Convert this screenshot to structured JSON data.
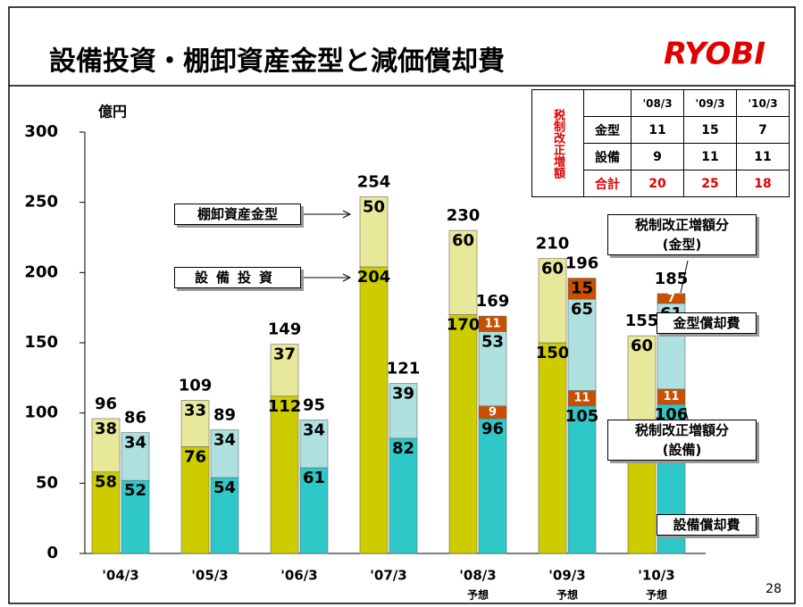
{
  "title": "設備投資・棚卸資産金型と減価償却費",
  "logo": "RYOBI",
  "page_number": "28",
  "chart_data": {
    "type": "stacked-bar",
    "unit_label": "億円",
    "categories": [
      "'04/3",
      "'05/3",
      "'06/3",
      "'07/3",
      "'08/3",
      "'09/3",
      "'10/3"
    ],
    "sublabels": [
      null,
      null,
      null,
      null,
      "予想",
      "予想",
      "予想"
    ],
    "ylim": [
      0,
      300
    ],
    "yticks": [
      0,
      50,
      100,
      150,
      200,
      250,
      300
    ],
    "stacks": [
      {
        "totals": [
          96,
          109,
          149,
          254,
          230,
          210,
          155
        ],
        "series": [
          {
            "name": "設備投資",
            "color": "#cccc00",
            "values": [
              58,
              76,
              112,
              204,
              170,
              150,
              95
            ]
          },
          {
            "name": "棚卸資産金型",
            "color": "#e8e89a",
            "values": [
              38,
              33,
              37,
              50,
              60,
              60,
              60
            ]
          }
        ]
      },
      {
        "totals": [
          86,
          89,
          95,
          121,
          169,
          196,
          185
        ],
        "series": [
          {
            "name": "設備償却費",
            "color": "#2ec8c8",
            "values": [
              52,
              54,
              61,
              82,
              96,
              105,
              106
            ]
          },
          {
            "name": "税制改正増額分\n(設備)",
            "color": "#c85000",
            "values": [
              null,
              null,
              null,
              null,
              9,
              11,
              11
            ]
          },
          {
            "name": "金型償却費",
            "color": "#aee0e0",
            "values": [
              34,
              34,
              34,
              39,
              53,
              65,
              61
            ]
          },
          {
            "name": "税制改正増額分\n(金型)",
            "color": "#c85000",
            "values": [
              null,
              null,
              null,
              null,
              11,
              15,
              7
            ]
          }
        ]
      }
    ]
  },
  "table": {
    "side_label": "税制改正増額",
    "header": [
      "'08/3",
      "'09/3",
      "'10/3"
    ],
    "rows": [
      {
        "label": "金型",
        "values": [
          "11",
          "15",
          "7"
        ]
      },
      {
        "label": "設備",
        "values": [
          "9",
          "11",
          "11"
        ]
      },
      {
        "label": "合計",
        "values": [
          "20",
          "25",
          "18"
        ]
      }
    ]
  }
}
